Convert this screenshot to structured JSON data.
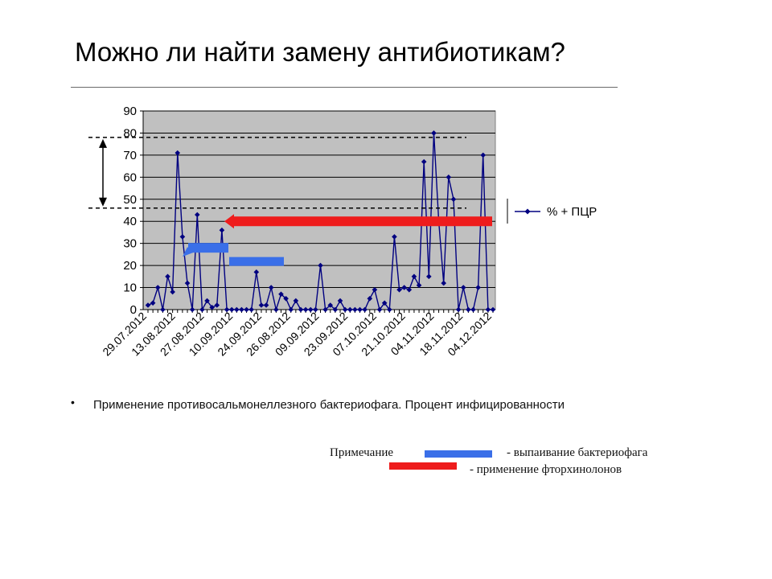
{
  "page": {
    "title": "Можно ли найти замену антибиотикам?",
    "bullet_symbol": "•",
    "caption": "Применение противосальмонеллезного бактериофага. Процент инфицированности"
  },
  "note": {
    "label": "Примечание",
    "blue_text": "- выпаивание бактериофага",
    "red_text": "- применение фторхинолонов",
    "blue_color": "#3a6fe8",
    "red_color": "#ee1c1c"
  },
  "chart_data": {
    "type": "line",
    "ylim": [
      0,
      90
    ],
    "yticks": [
      0,
      10,
      20,
      30,
      40,
      50,
      60,
      70,
      80,
      90
    ],
    "grid": "horizontal",
    "plot_background": "#c0c0c0",
    "line_color": "#000080",
    "marker": "diamond",
    "legend_position": "right",
    "x_tick_labels": [
      "29.07.2012",
      "13.08.2012",
      "27.08.2012",
      "10.09.2012",
      "24.09.2012",
      "26.08.2012",
      "09.09.2012",
      "23.09.2012",
      "07.10.2012",
      "21.10.2012",
      "04.11.2012",
      "18.11.2012",
      "04.12.2012"
    ],
    "series": [
      {
        "name": "% + ПЦР",
        "values": [
          2,
          3,
          10,
          0,
          15,
          8,
          71,
          33,
          12,
          0,
          43,
          0,
          4,
          1,
          2,
          36,
          0,
          0,
          0,
          0,
          0,
          0,
          17,
          2,
          2,
          10,
          0,
          7,
          5,
          0,
          4,
          0,
          0,
          0,
          0,
          20,
          0,
          2,
          0,
          4,
          0,
          0,
          0,
          0,
          0,
          5,
          9,
          0,
          3,
          0,
          33,
          9,
          10,
          9,
          15,
          11,
          67,
          15,
          80,
          40,
          12,
          60,
          50,
          0,
          10,
          0,
          0,
          10,
          70,
          0,
          0
        ]
      }
    ],
    "annotations": {
      "range_top": 78,
      "range_bottom": 46,
      "blue_bar_1_y": 28,
      "blue_bar_2_y": 22,
      "red_bar_y": 40
    }
  }
}
